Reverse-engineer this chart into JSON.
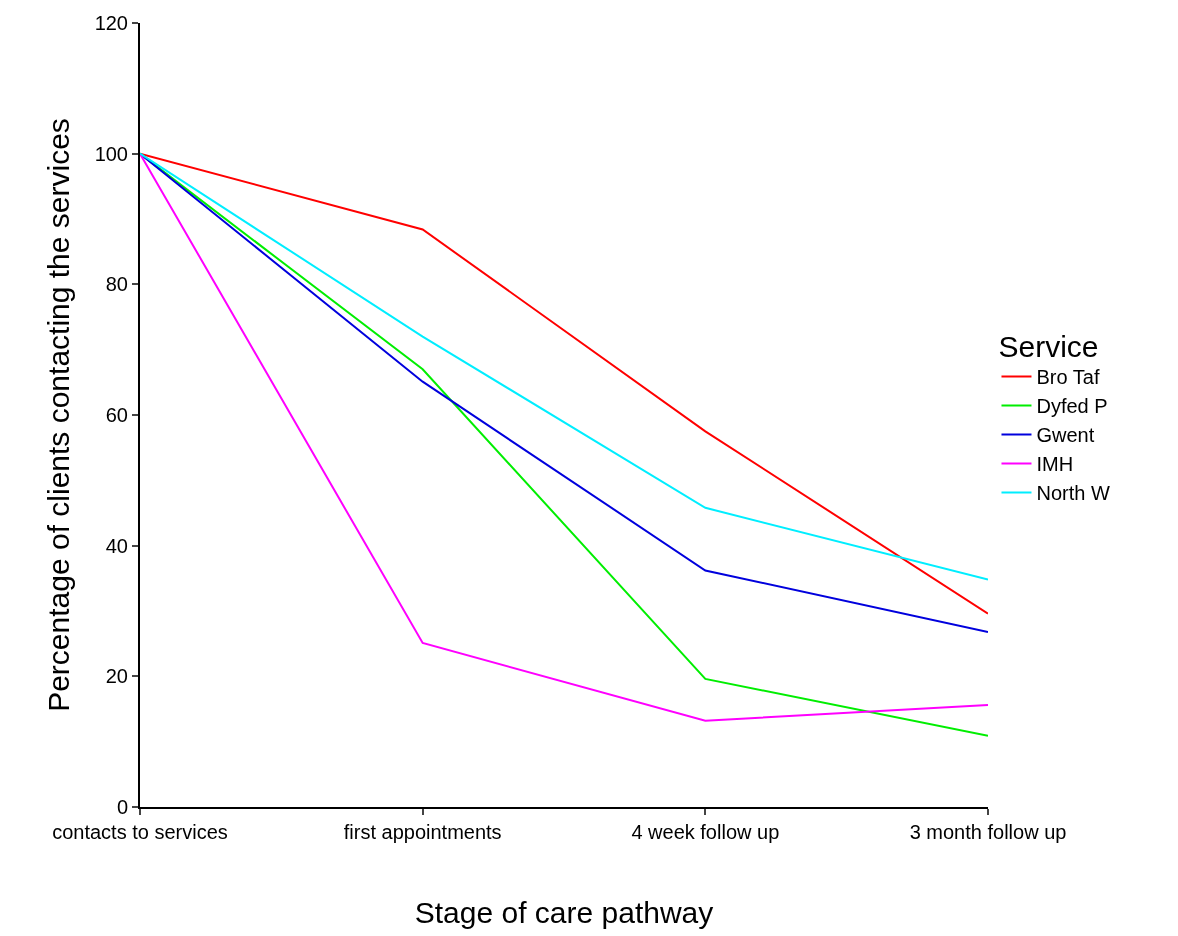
{
  "chart_data": {
    "type": "line",
    "xlabel": "Stage of care pathway",
    "ylabel": "Percentage of clients contacting the services",
    "legend_title": "Service",
    "categories": [
      "contacts to services",
      "first appointments",
      "4 week follow up",
      "3 month follow up"
    ],
    "series": [
      {
        "name": "Bro Taf",
        "color": "#ff0000",
        "values": [
          100,
          88.4,
          57.5,
          29.6
        ]
      },
      {
        "name": "Dyfed P",
        "color": "#00ee00",
        "values": [
          100,
          67,
          19.6,
          10.9
        ]
      },
      {
        "name": "Gwent",
        "color": "#0000dd",
        "values": [
          100,
          65.1,
          36.2,
          26.8
        ]
      },
      {
        "name": "IMH",
        "color": "#ff00ff",
        "values": [
          100,
          25.1,
          13.2,
          15.6
        ]
      },
      {
        "name": "North W",
        "color": "#00eeff",
        "values": [
          100,
          72,
          45.8,
          34.8
        ]
      }
    ],
    "ylim": [
      0,
      120
    ],
    "yticks": [
      0,
      20,
      40,
      60,
      80,
      100,
      120
    ],
    "grid": false,
    "legend": "right",
    "marker": "none",
    "line_style": "solid"
  }
}
